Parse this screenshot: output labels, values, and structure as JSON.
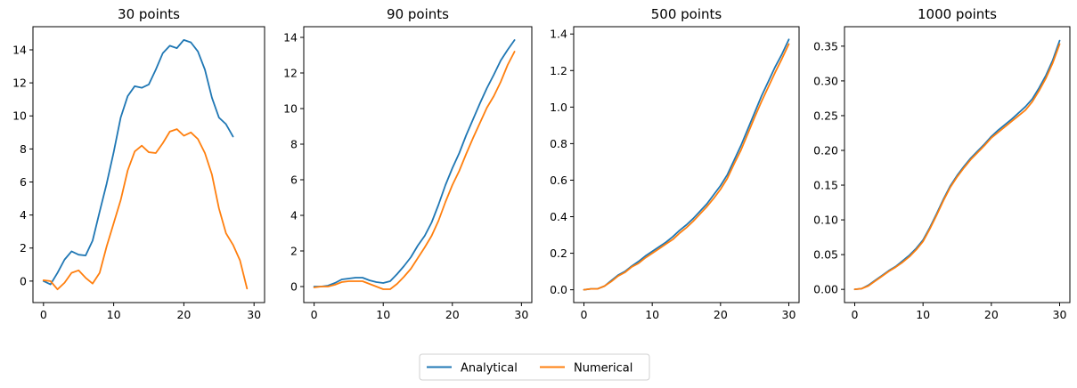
{
  "colors": {
    "analytical": "#1f77b4",
    "numerical": "#ff7f0e"
  },
  "legend": {
    "placement": "bottom-center",
    "entries": [
      {
        "label": "Analytical",
        "color": "#1f77b4"
      },
      {
        "label": "Numerical",
        "color": "#ff7f0e"
      }
    ]
  },
  "chart_data": [
    {
      "type": "line",
      "title": "30 points",
      "xlabel": "",
      "ylabel": "",
      "xlim": [
        -1.5,
        31.5
      ],
      "ylim": [
        -1.3,
        15.4
      ],
      "xticks": [
        0,
        10,
        20,
        30
      ],
      "yticks": [
        0,
        2,
        4,
        6,
        8,
        10,
        12,
        14
      ],
      "yticklabels": [
        "0",
        "2",
        "4",
        "6",
        "8",
        "10",
        "12",
        "14"
      ],
      "series": [
        {
          "name": "Analytical",
          "color": "#1f77b4",
          "x": [
            0,
            1,
            2,
            3,
            4,
            5,
            6,
            7,
            8,
            9,
            10,
            11,
            12,
            13,
            14,
            15,
            16,
            17,
            18,
            19,
            20,
            21,
            22,
            23,
            24,
            25,
            26,
            27
          ],
          "y": [
            0.0,
            -0.2,
            0.5,
            1.3,
            1.8,
            1.6,
            1.55,
            2.45,
            4.2,
            5.9,
            7.8,
            9.9,
            11.2,
            11.8,
            11.7,
            11.9,
            12.8,
            13.8,
            14.25,
            14.1,
            14.6,
            14.45,
            13.9,
            12.8,
            11.1,
            9.9,
            9.5,
            8.75
          ]
        },
        {
          "name": "Numerical",
          "color": "#ff7f0e",
          "x": [
            0,
            1,
            2,
            3,
            4,
            5,
            6,
            7,
            8,
            9,
            10,
            11,
            12,
            13,
            14,
            15,
            16,
            17,
            18,
            19,
            20,
            21,
            22,
            23,
            24,
            25,
            26,
            27,
            28,
            29
          ],
          "y": [
            0.05,
            0.0,
            -0.5,
            -0.1,
            0.5,
            0.65,
            0.2,
            -0.15,
            0.5,
            2.1,
            3.5,
            4.9,
            6.7,
            7.85,
            8.2,
            7.8,
            7.75,
            8.35,
            9.05,
            9.2,
            8.8,
            9.0,
            8.6,
            7.75,
            6.45,
            4.4,
            2.9,
            2.2,
            1.25,
            -0.45
          ]
        }
      ]
    },
    {
      "type": "line",
      "title": "90 points",
      "xlabel": "",
      "ylabel": "",
      "xlim": [
        -1.5,
        31.5
      ],
      "ylim": [
        -0.9,
        14.6
      ],
      "xticks": [
        0,
        10,
        20,
        30
      ],
      "yticks": [
        0,
        2,
        4,
        6,
        8,
        10,
        12,
        14
      ],
      "yticklabels": [
        "0",
        "2",
        "4",
        "6",
        "8",
        "10",
        "12",
        "14"
      ],
      "series": [
        {
          "name": "Analytical",
          "color": "#1f77b4",
          "x": [
            0,
            1,
            2,
            3,
            4,
            5,
            6,
            7,
            8,
            9,
            10,
            11,
            12,
            13,
            14,
            15,
            16,
            17,
            18,
            19,
            20,
            21,
            22,
            23,
            24,
            25,
            26,
            27,
            28,
            29
          ],
          "y": [
            0.0,
            0.0,
            0.05,
            0.2,
            0.4,
            0.45,
            0.5,
            0.5,
            0.35,
            0.25,
            0.2,
            0.3,
            0.7,
            1.15,
            1.65,
            2.3,
            2.85,
            3.6,
            4.6,
            5.7,
            6.65,
            7.5,
            8.5,
            9.4,
            10.3,
            11.15,
            11.9,
            12.7,
            13.3,
            13.85
          ]
        },
        {
          "name": "Numerical",
          "color": "#ff7f0e",
          "x": [
            0,
            1,
            2,
            3,
            4,
            5,
            6,
            7,
            8,
            9,
            10,
            11,
            12,
            13,
            14,
            15,
            16,
            17,
            18,
            19,
            20,
            21,
            22,
            23,
            24,
            25,
            26,
            27,
            28,
            29
          ],
          "y": [
            -0.05,
            0.0,
            0.0,
            0.1,
            0.25,
            0.3,
            0.3,
            0.3,
            0.15,
            0.0,
            -0.15,
            -0.15,
            0.15,
            0.55,
            1.0,
            1.6,
            2.2,
            2.85,
            3.7,
            4.75,
            5.7,
            6.5,
            7.45,
            8.35,
            9.2,
            10.05,
            10.7,
            11.5,
            12.45,
            13.2
          ]
        }
      ]
    },
    {
      "type": "line",
      "title": "500 points",
      "xlabel": "",
      "ylabel": "",
      "xlim": [
        -1.5,
        31.5
      ],
      "ylim": [
        -0.07,
        1.44
      ],
      "xticks": [
        0,
        10,
        20,
        30
      ],
      "yticks": [
        0.0,
        0.2,
        0.4,
        0.6,
        0.8,
        1.0,
        1.2,
        1.4
      ],
      "yticklabels": [
        "0.0",
        "0.2",
        "0.4",
        "0.6",
        "0.8",
        "1.0",
        "1.2",
        "1.4"
      ],
      "series": [
        {
          "name": "Analytical",
          "color": "#1f77b4",
          "x": [
            0,
            1,
            2,
            3,
            4,
            5,
            6,
            7,
            8,
            9,
            10,
            11,
            12,
            13,
            14,
            15,
            16,
            17,
            18,
            19,
            20,
            21,
            22,
            23,
            24,
            25,
            26,
            27,
            28,
            29,
            30
          ],
          "y": [
            0.0,
            0.005,
            0.005,
            0.02,
            0.05,
            0.08,
            0.1,
            0.13,
            0.155,
            0.185,
            0.21,
            0.235,
            0.26,
            0.29,
            0.325,
            0.355,
            0.39,
            0.43,
            0.47,
            0.52,
            0.57,
            0.63,
            0.71,
            0.79,
            0.88,
            0.97,
            1.06,
            1.14,
            1.22,
            1.29,
            1.37
          ]
        },
        {
          "name": "Numerical",
          "color": "#ff7f0e",
          "x": [
            0,
            1,
            2,
            3,
            4,
            5,
            6,
            7,
            8,
            9,
            10,
            11,
            12,
            13,
            14,
            15,
            16,
            17,
            18,
            19,
            20,
            21,
            22,
            23,
            24,
            25,
            26,
            27,
            28,
            29,
            30
          ],
          "y": [
            0.0,
            0.005,
            0.005,
            0.02,
            0.045,
            0.075,
            0.095,
            0.125,
            0.145,
            0.175,
            0.2,
            0.225,
            0.25,
            0.275,
            0.31,
            0.34,
            0.375,
            0.415,
            0.455,
            0.5,
            0.55,
            0.61,
            0.69,
            0.765,
            0.855,
            0.945,
            1.03,
            1.11,
            1.19,
            1.265,
            1.345
          ]
        }
      ]
    },
    {
      "type": "line",
      "title": "1000 points",
      "xlabel": "",
      "ylabel": "",
      "xlim": [
        -1.5,
        31.5
      ],
      "ylim": [
        -0.019,
        0.378
      ],
      "xticks": [
        0,
        10,
        20,
        30
      ],
      "yticks": [
        0.0,
        0.05,
        0.1,
        0.15,
        0.2,
        0.25,
        0.3,
        0.35
      ],
      "yticklabels": [
        "0.00",
        "0.05",
        "0.10",
        "0.15",
        "0.20",
        "0.25",
        "0.30",
        "0.35"
      ],
      "series": [
        {
          "name": "Analytical",
          "color": "#1f77b4",
          "x": [
            0,
            1,
            2,
            3,
            4,
            5,
            6,
            7,
            8,
            9,
            10,
            11,
            12,
            13,
            14,
            15,
            16,
            17,
            18,
            19,
            20,
            21,
            22,
            23,
            24,
            25,
            26,
            27,
            28,
            29,
            30
          ],
          "y": [
            0.0,
            0.001,
            0.006,
            0.013,
            0.02,
            0.027,
            0.033,
            0.041,
            0.049,
            0.059,
            0.071,
            0.089,
            0.109,
            0.13,
            0.149,
            0.164,
            0.177,
            0.189,
            0.199,
            0.209,
            0.22,
            0.229,
            0.237,
            0.245,
            0.254,
            0.263,
            0.274,
            0.29,
            0.308,
            0.33,
            0.358
          ]
        },
        {
          "name": "Numerical",
          "color": "#ff7f0e",
          "x": [
            0,
            1,
            2,
            3,
            4,
            5,
            6,
            7,
            8,
            9,
            10,
            11,
            12,
            13,
            14,
            15,
            16,
            17,
            18,
            19,
            20,
            21,
            22,
            23,
            24,
            25,
            26,
            27,
            28,
            29,
            30
          ],
          "y": [
            0.0,
            0.001,
            0.005,
            0.012,
            0.019,
            0.026,
            0.032,
            0.039,
            0.047,
            0.057,
            0.069,
            0.087,
            0.107,
            0.128,
            0.147,
            0.162,
            0.175,
            0.187,
            0.197,
            0.207,
            0.218,
            0.226,
            0.234,
            0.242,
            0.25,
            0.258,
            0.27,
            0.286,
            0.304,
            0.326,
            0.353
          ]
        }
      ]
    }
  ]
}
